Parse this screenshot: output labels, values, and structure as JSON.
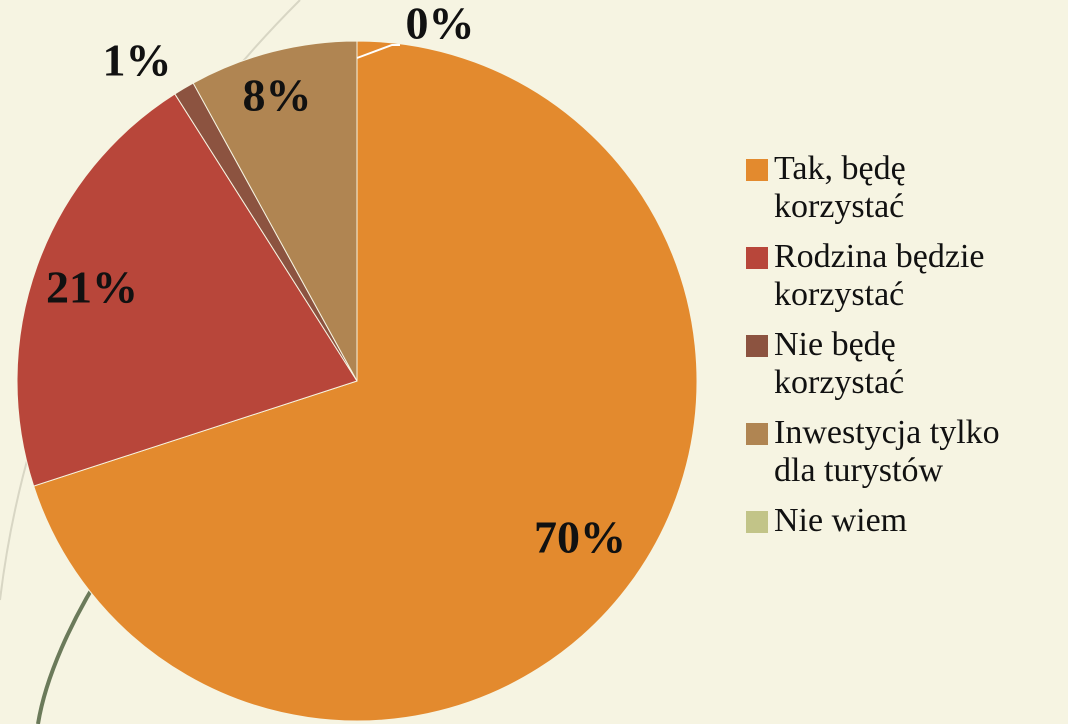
{
  "chart_data": {
    "type": "pie",
    "categories": [
      "Tak, będę korzystać",
      "Rodzina będzie korzystać",
      "Nie będę korzystać",
      "Inwestycja tylko dla turystów",
      "Nie wiem"
    ],
    "values": [
      70,
      21,
      1,
      8,
      0
    ],
    "value_labels": [
      "70%",
      "21%",
      "1%",
      "8%",
      "0%"
    ],
    "colors": [
      "#e38a2e",
      "#b8463a",
      "#8c5340",
      "#b08552",
      "#c2c488"
    ],
    "legend": "right"
  }
}
